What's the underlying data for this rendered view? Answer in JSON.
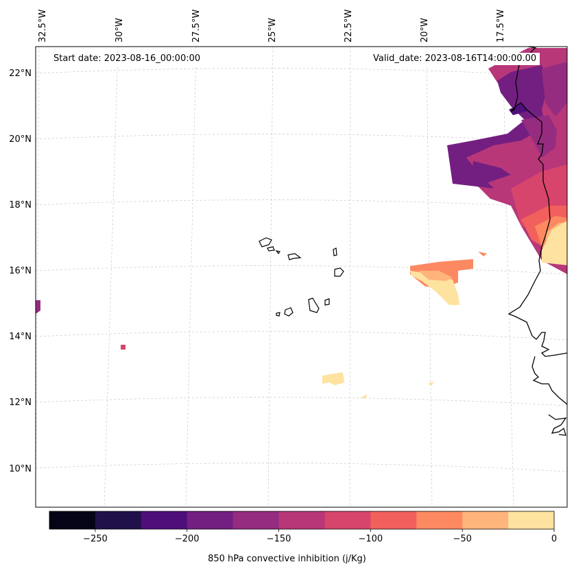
{
  "map": {
    "start_label": "Start date: 2023-08-16_00:00:00",
    "valid_label": "Valid_date: 2023-08-16T14:00:00.00",
    "lon_labels": [
      "32.5°W",
      "30°W",
      "27.5°W",
      "25°W",
      "22.5°W",
      "20°W",
      "17.5°W"
    ],
    "lat_labels": [
      "22°N",
      "20°N",
      "18°N",
      "16°N",
      "14°N",
      "12°N",
      "10°N"
    ],
    "region_lon": [
      -32.5,
      -16.3
    ],
    "region_lat": [
      9.0,
      22.7
    ],
    "gridlines": true
  },
  "colorbar": {
    "title": "850 hPa convective inhibition (j/Kg)",
    "min": -275,
    "max": 0,
    "tick_values": [
      -250,
      -200,
      -150,
      -100,
      -50,
      0
    ],
    "tick_labels": [
      "−250",
      "−200",
      "−150",
      "−100",
      "−50",
      "0"
    ],
    "colors": [
      "#050416",
      "#20114b",
      "#4f0f7a",
      "#731f81",
      "#952c80",
      "#b73779",
      "#d8456c",
      "#f1605d",
      "#fc8961",
      "#feb47b",
      "#fee29f"
    ]
  }
}
